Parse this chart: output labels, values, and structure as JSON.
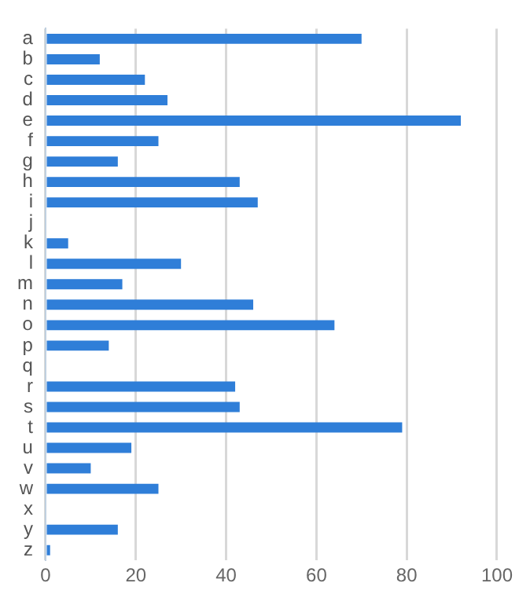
{
  "chart_data": {
    "type": "bar",
    "orientation": "horizontal",
    "categories": [
      "a",
      "b",
      "c",
      "d",
      "e",
      "f",
      "g",
      "h",
      "i",
      "j",
      "k",
      "l",
      "m",
      "n",
      "o",
      "p",
      "q",
      "r",
      "s",
      "t",
      "u",
      "v",
      "w",
      "x",
      "y",
      "z"
    ],
    "values": [
      70,
      12,
      22,
      27,
      92,
      25,
      16,
      43,
      47,
      0,
      5,
      30,
      17,
      46,
      64,
      14,
      0,
      42,
      43,
      79,
      19,
      10,
      25,
      0,
      16,
      1
    ],
    "color": "#2f7ed8",
    "xlim": [
      0,
      100
    ],
    "xticks": [
      0,
      20,
      40,
      60,
      80,
      100
    ],
    "grid": "x",
    "legend": false
  }
}
